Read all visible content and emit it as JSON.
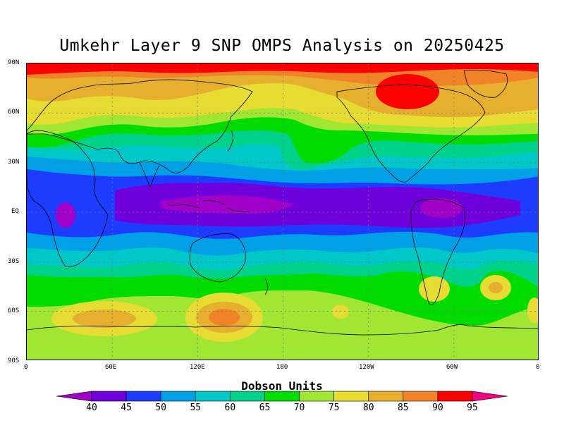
{
  "title": "Umkehr Layer 9 SNP OMPS Analysis on 20250425",
  "latitude_labels": [
    "90N",
    "60N",
    "30N",
    "EQ",
    "30S",
    "60S",
    "90S"
  ],
  "longitude_labels": [
    "0",
    "60E",
    "120E",
    "180",
    "120W",
    "60W",
    "0"
  ],
  "colorbar": {
    "title": "Dobson Units",
    "levels": [
      "40",
      "45",
      "50",
      "55",
      "60",
      "65",
      "70",
      "75",
      "80",
      "85",
      "90",
      "95"
    ],
    "colors": [
      "#a000c8",
      "#6e00dc",
      "#1e3cff",
      "#00a0e6",
      "#00c8c8",
      "#00d28c",
      "#00dc00",
      "#a0e632",
      "#e6dc32",
      "#e6af2d",
      "#f08228",
      "#fa0000",
      "#f00082"
    ]
  },
  "field_bands": [
    {
      "lat_range": "90N-80N",
      "value_du": "90-95+"
    },
    {
      "lat_range": "80N-60N",
      "value_du": "80-90"
    },
    {
      "lat_range": "60N-45N",
      "value_du": "70-80"
    },
    {
      "lat_range": "45N-20N",
      "value_du": "55-70"
    },
    {
      "lat_range": "20N-20S",
      "value_du": "40-50"
    },
    {
      "lat_range": "20S-45S",
      "value_du": "50-65"
    },
    {
      "lat_range": "45S-60S",
      "value_du": "65-75"
    },
    {
      "lat_range": "60S-90S",
      "value_du": "75-85"
    }
  ]
}
